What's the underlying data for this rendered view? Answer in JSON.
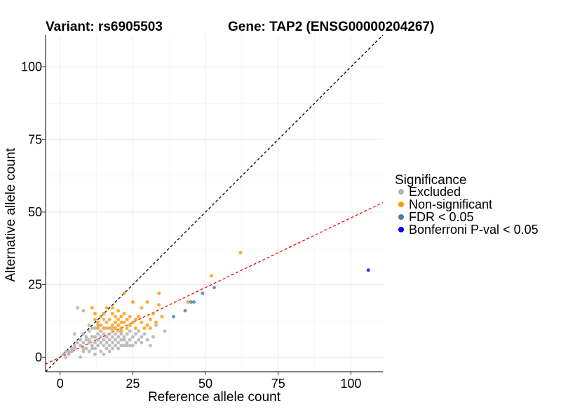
{
  "chart_data": {
    "type": "scatter",
    "title_variant": "Variant: rs6905503",
    "title_gene": "Gene: TAP2 (ENSG00000204267)",
    "xlabel": "Reference allele count",
    "ylabel": "Alternative allele count",
    "xlim": [
      -5,
      111
    ],
    "ylim": [
      -5,
      111
    ],
    "x_ticks": [
      0,
      25,
      50,
      75,
      100
    ],
    "y_ticks": [
      0,
      25,
      50,
      75,
      100
    ],
    "grid": true,
    "legend": {
      "title": "Significance",
      "position": "right",
      "entries": [
        {
          "key": "excluded",
          "label": "Excluded",
          "color": "#b3b3b3"
        },
        {
          "key": "nonsig",
          "label": "Non-significant",
          "color": "#ff9900"
        },
        {
          "key": "fdr",
          "label": "FDR < 0.05",
          "color": "#4a78b5"
        },
        {
          "key": "bonf",
          "label": "Bonferroni P-val < 0.05",
          "color": "#0000ff"
        }
      ]
    },
    "reference_lines": [
      {
        "name": "identity",
        "slope": 1,
        "intercept": 0,
        "color": "#000000",
        "dash": "dashed"
      },
      {
        "name": "fitted",
        "slope": 0.48,
        "intercept": 0,
        "color": "#ff0000",
        "dash": "dashed"
      }
    ],
    "series": [
      {
        "name": "Excluded",
        "key": "excluded",
        "points": [
          [
            1,
            1
          ],
          [
            2,
            2
          ],
          [
            2,
            0
          ],
          [
            3,
            1
          ],
          [
            3,
            2
          ],
          [
            4,
            3
          ],
          [
            4,
            2
          ],
          [
            5,
            3
          ],
          [
            5,
            4
          ],
          [
            6,
            5
          ],
          [
            5,
            8
          ],
          [
            6,
            17
          ],
          [
            7,
            6
          ],
          [
            7,
            0
          ],
          [
            7,
            4
          ],
          [
            8,
            2
          ],
          [
            8,
            3
          ],
          [
            8,
            5
          ],
          [
            8,
            8
          ],
          [
            8,
            16
          ],
          [
            9,
            3
          ],
          [
            9,
            6
          ],
          [
            9,
            7
          ],
          [
            10,
            2
          ],
          [
            10,
            5
          ],
          [
            10,
            6
          ],
          [
            10,
            9
          ],
          [
            10,
            11
          ],
          [
            11,
            3
          ],
          [
            11,
            4
          ],
          [
            11,
            7
          ],
          [
            11,
            10
          ],
          [
            12,
            1
          ],
          [
            12,
            5
          ],
          [
            12,
            7
          ],
          [
            12,
            10
          ],
          [
            13,
            4
          ],
          [
            13,
            6
          ],
          [
            13,
            8
          ],
          [
            13,
            11
          ],
          [
            14,
            2
          ],
          [
            14,
            5
          ],
          [
            14,
            7
          ],
          [
            14,
            9
          ],
          [
            15,
            4
          ],
          [
            15,
            6
          ],
          [
            15,
            8
          ],
          [
            15,
            13
          ],
          [
            16,
            3
          ],
          [
            16,
            5
          ],
          [
            16,
            7
          ],
          [
            16,
            10
          ],
          [
            17,
            2
          ],
          [
            17,
            4
          ],
          [
            17,
            6
          ],
          [
            17,
            8
          ],
          [
            18,
            3
          ],
          [
            18,
            5
          ],
          [
            18,
            7
          ],
          [
            18,
            10
          ],
          [
            19,
            4
          ],
          [
            19,
            6
          ],
          [
            19,
            8
          ],
          [
            20,
            3
          ],
          [
            20,
            5
          ],
          [
            20,
            7
          ],
          [
            20,
            9
          ],
          [
            21,
            4
          ],
          [
            21,
            6
          ],
          [
            21,
            8
          ],
          [
            22,
            4
          ],
          [
            22,
            6
          ],
          [
            22,
            7
          ],
          [
            23,
            4
          ],
          [
            23,
            5
          ],
          [
            23,
            8
          ],
          [
            24,
            4
          ],
          [
            24,
            6
          ],
          [
            24,
            9
          ],
          [
            25,
            4
          ],
          [
            25,
            7
          ],
          [
            26,
            5
          ],
          [
            26,
            8
          ],
          [
            27,
            6
          ],
          [
            27,
            9
          ],
          [
            28,
            5
          ],
          [
            28,
            7
          ],
          [
            29,
            8
          ],
          [
            30,
            6
          ],
          [
            31,
            4
          ],
          [
            32,
            7
          ],
          [
            33,
            11
          ],
          [
            36,
            9
          ],
          [
            15,
            1
          ],
          [
            12,
            3
          ]
        ]
      },
      {
        "name": "Non-significant",
        "key": "nonsig",
        "points": [
          [
            11,
            17
          ],
          [
            12,
            13
          ],
          [
            12,
            15
          ],
          [
            13,
            10
          ],
          [
            13,
            12
          ],
          [
            14,
            11
          ],
          [
            14,
            14
          ],
          [
            15,
            10
          ],
          [
            15,
            15
          ],
          [
            16,
            12
          ],
          [
            16,
            17
          ],
          [
            17,
            10
          ],
          [
            17,
            13
          ],
          [
            18,
            11
          ],
          [
            18,
            15
          ],
          [
            18,
            17
          ],
          [
            19,
            10
          ],
          [
            19,
            12
          ],
          [
            19,
            14
          ],
          [
            20,
            11
          ],
          [
            20,
            13
          ],
          [
            20,
            16
          ],
          [
            21,
            10
          ],
          [
            21,
            12
          ],
          [
            21,
            14
          ],
          [
            22,
            12
          ],
          [
            22,
            15
          ],
          [
            22,
            22
          ],
          [
            23,
            10
          ],
          [
            23,
            13
          ],
          [
            24,
            11
          ],
          [
            24,
            14
          ],
          [
            25,
            12
          ],
          [
            25,
            19
          ],
          [
            26,
            10
          ],
          [
            26,
            13
          ],
          [
            27,
            14
          ],
          [
            28,
            12
          ],
          [
            28,
            17
          ],
          [
            29,
            10
          ],
          [
            30,
            11
          ],
          [
            31,
            10
          ],
          [
            31,
            13
          ],
          [
            32,
            15
          ],
          [
            33,
            12
          ],
          [
            34,
            18
          ],
          [
            35,
            14
          ],
          [
            34,
            22
          ],
          [
            44,
            19
          ],
          [
            52,
            28
          ],
          [
            62,
            36
          ],
          [
            18,
            9
          ],
          [
            21,
            9
          ],
          [
            30,
            19
          ]
        ]
      },
      {
        "name": "FDR < 0.05",
        "key": "fdr",
        "points": [
          [
            39,
            14
          ],
          [
            43,
            16
          ],
          [
            45,
            19
          ],
          [
            46,
            19
          ],
          [
            49,
            22
          ],
          [
            53,
            24
          ]
        ]
      },
      {
        "name": "Bonferroni P-val < 0.05",
        "key": "bonf",
        "points": [
          [
            106,
            30
          ]
        ]
      }
    ]
  }
}
